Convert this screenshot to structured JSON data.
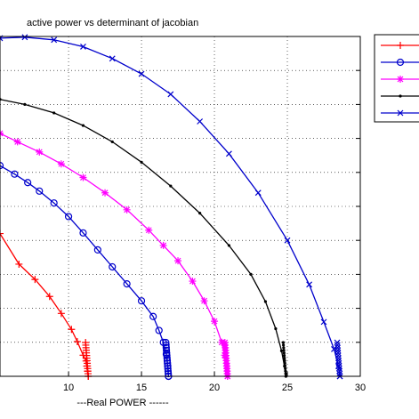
{
  "chart_data": {
    "type": "line",
    "title": "active power vs determinant of jacobian",
    "xlabel": "---Real POWER ------",
    "ylabel": "",
    "xlim": [
      5.3,
      30
    ],
    "ylim": [
      0,
      1
    ],
    "xticks": [
      10,
      15,
      20,
      25,
      30
    ],
    "xtick_labels": [
      "10",
      "15",
      "20",
      "25",
      "30"
    ],
    "grid": true,
    "legend_position": "top-right",
    "series": [
      {
        "color": "#ff0000",
        "marker": "plus",
        "x": [
          5.3,
          6.6,
          7.7,
          8.7,
          9.5,
          10.2,
          10.6,
          11.0,
          11.2,
          11.25,
          11.3,
          11.35
        ],
        "y": [
          0.42,
          0.33,
          0.285,
          0.235,
          0.185,
          0.138,
          0.102,
          0.062,
          0.045,
          0.03,
          0.015,
          0.0
        ]
      },
      {
        "color": "#0000cc",
        "marker": "circle",
        "x": [
          5.3,
          6.3,
          7.2,
          8.0,
          9.0,
          10.0,
          11.0,
          12.0,
          13.0,
          14.0,
          15.0,
          15.8,
          16.2,
          16.5,
          16.7,
          16.8,
          16.85
        ],
        "y": [
          0.62,
          0.595,
          0.57,
          0.545,
          0.51,
          0.47,
          0.422,
          0.372,
          0.322,
          0.272,
          0.222,
          0.176,
          0.135,
          0.1,
          0.065,
          0.03,
          0.0
        ]
      },
      {
        "color": "#ff00ff",
        "marker": "star",
        "x": [
          5.3,
          6.5,
          8.0,
          9.5,
          11.0,
          12.5,
          14.0,
          15.5,
          16.5,
          17.5,
          18.5,
          19.3,
          20.0,
          20.5,
          20.7,
          20.85,
          20.9
        ],
        "y": [
          0.715,
          0.69,
          0.66,
          0.625,
          0.585,
          0.54,
          0.49,
          0.43,
          0.385,
          0.34,
          0.28,
          0.222,
          0.162,
          0.1,
          0.062,
          0.03,
          0.0
        ]
      },
      {
        "color": "#000000",
        "marker": "dot",
        "x": [
          5.3,
          7.0,
          9.0,
          11.0,
          13.0,
          15.0,
          17.0,
          19.0,
          21.0,
          22.5,
          23.5,
          24.2,
          24.6,
          24.8,
          24.9
        ],
        "y": [
          0.815,
          0.8,
          0.775,
          0.738,
          0.69,
          0.63,
          0.56,
          0.48,
          0.385,
          0.3,
          0.22,
          0.14,
          0.075,
          0.03,
          0.0
        ]
      },
      {
        "color": "#0000cc",
        "marker": "x",
        "x": [
          5.3,
          7.0,
          9.0,
          11.0,
          13.0,
          15.0,
          17.0,
          19.0,
          21.0,
          23.0,
          25.0,
          26.5,
          27.5,
          28.2,
          28.5,
          28.6
        ],
        "y": [
          0.995,
          0.998,
          0.99,
          0.97,
          0.935,
          0.89,
          0.83,
          0.75,
          0.655,
          0.54,
          0.4,
          0.27,
          0.16,
          0.08,
          0.03,
          0.0
        ]
      }
    ]
  }
}
